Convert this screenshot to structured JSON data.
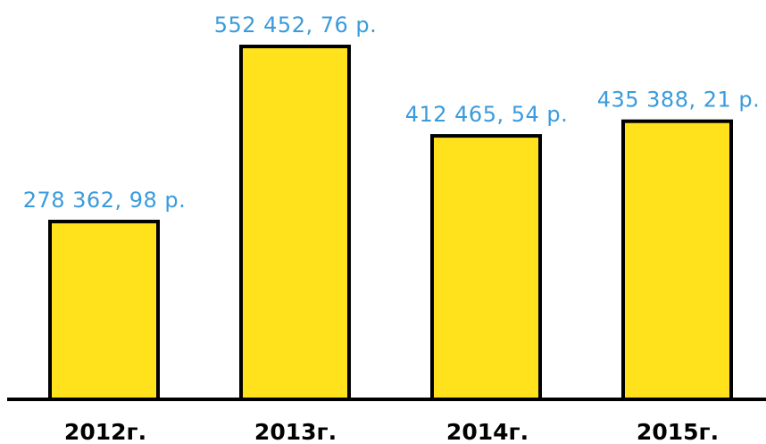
{
  "chart_data": {
    "type": "bar",
    "title": "",
    "xlabel": "",
    "ylabel": "",
    "ylim": [
      0,
      600000
    ],
    "grid": false,
    "categories": [
      "2012г.",
      "2013г.",
      "2014г.",
      "2015г."
    ],
    "values": [
      278362.98,
      552452.76,
      412465.54,
      435388.21
    ],
    "value_labels": [
      "278 362, 98 р.",
      "552 452, 76 р.",
      "412 465, 54 р.",
      "435 388, 21 р."
    ],
    "colors": {
      "bar_fill": "#FFE21C",
      "bar_stroke": "#000000",
      "value_label": "#3A9BDC",
      "category_label": "#000000",
      "axis": "#000000"
    }
  }
}
